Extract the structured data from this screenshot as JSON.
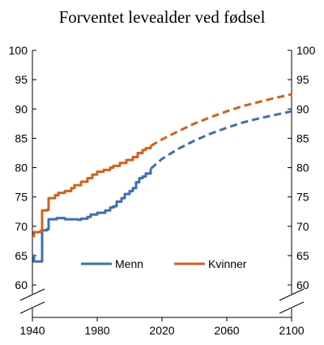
{
  "chart_data": {
    "type": "line",
    "title": "Forventet levealder ved fødsel",
    "xlabel": "",
    "ylabel": "",
    "xlim": [
      1940,
      2100
    ],
    "ylim": [
      60,
      100
    ],
    "axis_break": true,
    "y_axis_sides": [
      "left",
      "right"
    ],
    "x_ticks": [
      1940,
      1980,
      2020,
      2060,
      2100
    ],
    "y_ticks": [
      60,
      65,
      70,
      75,
      80,
      85,
      90,
      95,
      100
    ],
    "grid": false,
    "legend_position": "bottom-center",
    "series": [
      {
        "name": "Menn",
        "color": "#3d6fb6",
        "historical": [
          [
            1940,
            65.0
          ],
          [
            1941,
            64.0
          ],
          [
            1945,
            64.0
          ],
          [
            1946,
            69.3
          ],
          [
            1949,
            69.5
          ],
          [
            1950,
            71.2
          ],
          [
            1955,
            71.4
          ],
          [
            1958,
            71.4
          ],
          [
            1960,
            71.2
          ],
          [
            1966,
            71.2
          ],
          [
            1968,
            71.1
          ],
          [
            1970,
            71.3
          ],
          [
            1974,
            71.6
          ],
          [
            1976,
            72.0
          ],
          [
            1980,
            72.3
          ],
          [
            1985,
            72.7
          ],
          [
            1988,
            73.2
          ],
          [
            1990,
            73.4
          ],
          [
            1992,
            74.2
          ],
          [
            1995,
            74.8
          ],
          [
            1997,
            75.5
          ],
          [
            2000,
            76.0
          ],
          [
            2002,
            76.5
          ],
          [
            2004,
            77.5
          ],
          [
            2006,
            78.2
          ],
          [
            2008,
            78.5
          ],
          [
            2010,
            79.0
          ],
          [
            2013,
            79.8
          ]
        ],
        "projection": [
          [
            2013,
            79.8
          ],
          [
            2020,
            81.5
          ],
          [
            2030,
            83.2
          ],
          [
            2040,
            84.6
          ],
          [
            2050,
            85.8
          ],
          [
            2060,
            86.8
          ],
          [
            2070,
            87.7
          ],
          [
            2080,
            88.4
          ],
          [
            2090,
            89.0
          ],
          [
            2100,
            89.6
          ]
        ]
      },
      {
        "name": "Kvinner",
        "color": "#d4601c",
        "historical": [
          [
            1940,
            68.3
          ],
          [
            1941,
            69.0
          ],
          [
            1945,
            69.2
          ],
          [
            1946,
            72.7
          ],
          [
            1949,
            72.8
          ],
          [
            1950,
            74.8
          ],
          [
            1954,
            75.3
          ],
          [
            1956,
            75.7
          ],
          [
            1960,
            76.0
          ],
          [
            1964,
            76.5
          ],
          [
            1966,
            77.0
          ],
          [
            1970,
            77.6
          ],
          [
            1974,
            78.2
          ],
          [
            1977,
            78.8
          ],
          [
            1980,
            79.3
          ],
          [
            1984,
            79.6
          ],
          [
            1988,
            80.0
          ],
          [
            1990,
            80.3
          ],
          [
            1994,
            80.8
          ],
          [
            1998,
            81.3
          ],
          [
            2002,
            81.8
          ],
          [
            2005,
            82.5
          ],
          [
            2008,
            83.0
          ],
          [
            2010,
            83.3
          ],
          [
            2013,
            83.7
          ]
        ],
        "projection": [
          [
            2013,
            83.7
          ],
          [
            2020,
            84.8
          ],
          [
            2030,
            86.2
          ],
          [
            2040,
            87.5
          ],
          [
            2050,
            88.6
          ],
          [
            2060,
            89.6
          ],
          [
            2070,
            90.5
          ],
          [
            2080,
            91.2
          ],
          [
            2090,
            91.9
          ],
          [
            2100,
            92.5
          ]
        ]
      }
    ]
  }
}
